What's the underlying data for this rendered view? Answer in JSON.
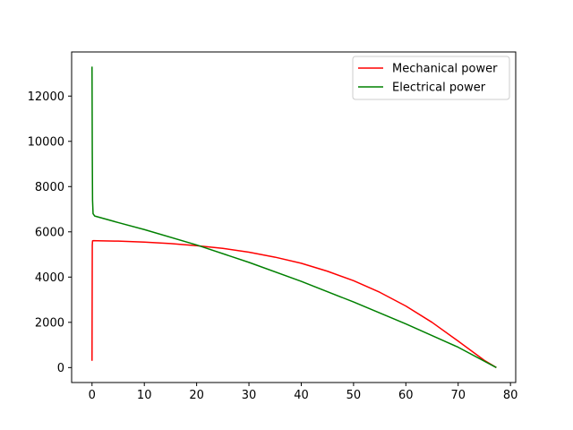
{
  "chart_data": {
    "type": "line",
    "title": "",
    "xlabel": "",
    "ylabel": "",
    "xlim": [
      -3.9,
      81.0
    ],
    "ylim": [
      -660,
      13950
    ],
    "xticks": [
      0,
      10,
      20,
      30,
      40,
      50,
      60,
      70,
      80
    ],
    "yticks": [
      0,
      2000,
      4000,
      6000,
      8000,
      10000,
      12000
    ],
    "grid": false,
    "legend": {
      "placement": "top-right"
    },
    "series": [
      {
        "name": "Mechanical power",
        "color": "#ff0000",
        "x": [
          0,
          0.02,
          0.05,
          0.1,
          0.3,
          1,
          5,
          10,
          15,
          20,
          25,
          30,
          35,
          40,
          45,
          50,
          55,
          60,
          65,
          70,
          75,
          77.3
        ],
        "y": [
          300,
          2500,
          5400,
          5600,
          5610,
          5605,
          5590,
          5545,
          5480,
          5390,
          5270,
          5100,
          4880,
          4610,
          4260,
          3840,
          3330,
          2720,
          2000,
          1170,
          320,
          0
        ]
      },
      {
        "name": "Electrical power",
        "color": "#008000",
        "x": [
          0,
          0.05,
          0.1,
          0.2,
          0.5,
          5,
          10,
          20,
          30,
          40,
          50,
          60,
          70,
          77.3
        ],
        "y": [
          13300,
          9500,
          7400,
          6800,
          6700,
          6410,
          6100,
          5420,
          4650,
          3810,
          2900,
          1930,
          900,
          0
        ]
      }
    ]
  }
}
